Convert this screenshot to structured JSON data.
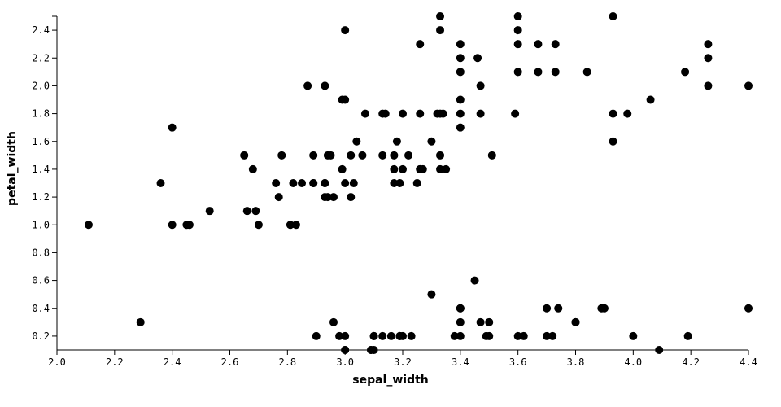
{
  "chart_data": {
    "type": "scatter",
    "title": "",
    "xlabel": "sepal_width",
    "ylabel": "petal_width",
    "xlim": [
      2.0,
      4.4
    ],
    "ylim": [
      0.1,
      2.5
    ],
    "xticks": [
      "2.0",
      "2.2",
      "2.4",
      "2.6",
      "2.8",
      "3.0",
      "3.2",
      "3.4",
      "3.6",
      "3.8",
      "4.0",
      "4.2",
      "4.4"
    ],
    "yticks": [
      "0.2",
      "0.4",
      "0.6",
      "0.8",
      "1.0",
      "1.2",
      "1.4",
      "1.6",
      "1.8",
      "2.0",
      "2.2",
      "2.4"
    ],
    "grid": false,
    "point_color": "#000000",
    "points": [
      [
        3.33,
        2.5
      ],
      [
        3.6,
        2.5
      ],
      [
        3.93,
        2.5
      ],
      [
        3.0,
        2.4
      ],
      [
        3.33,
        2.4
      ],
      [
        3.6,
        2.4
      ],
      [
        3.26,
        2.3
      ],
      [
        3.4,
        2.3
      ],
      [
        3.6,
        2.3
      ],
      [
        3.67,
        2.3
      ],
      [
        3.73,
        2.3
      ],
      [
        4.26,
        2.3
      ],
      [
        3.4,
        2.2
      ],
      [
        3.46,
        2.2
      ],
      [
        4.26,
        2.2
      ],
      [
        3.4,
        2.1
      ],
      [
        3.6,
        2.1
      ],
      [
        3.67,
        2.1
      ],
      [
        3.73,
        2.1
      ],
      [
        3.84,
        2.1
      ],
      [
        4.18,
        2.1
      ],
      [
        2.87,
        2.0
      ],
      [
        2.93,
        2.0
      ],
      [
        3.47,
        2.0
      ],
      [
        4.26,
        2.0
      ],
      [
        4.4,
        2.0
      ],
      [
        2.99,
        1.9
      ],
      [
        3.0,
        1.9
      ],
      [
        3.4,
        1.9
      ],
      [
        4.06,
        1.9
      ],
      [
        3.07,
        1.8
      ],
      [
        3.13,
        1.8
      ],
      [
        3.14,
        1.8
      ],
      [
        3.2,
        1.8
      ],
      [
        3.26,
        1.8
      ],
      [
        3.32,
        1.8
      ],
      [
        3.33,
        1.8
      ],
      [
        3.34,
        1.8
      ],
      [
        3.4,
        1.8
      ],
      [
        3.47,
        1.8
      ],
      [
        3.59,
        1.8
      ],
      [
        3.93,
        1.8
      ],
      [
        3.98,
        1.8
      ],
      [
        2.4,
        1.7
      ],
      [
        3.4,
        1.7
      ],
      [
        3.04,
        1.6
      ],
      [
        3.18,
        1.6
      ],
      [
        3.3,
        1.6
      ],
      [
        3.93,
        1.6
      ],
      [
        2.65,
        1.5
      ],
      [
        2.78,
        1.5
      ],
      [
        2.89,
        1.5
      ],
      [
        2.94,
        1.5
      ],
      [
        2.95,
        1.5
      ],
      [
        3.02,
        1.5
      ],
      [
        3.06,
        1.5
      ],
      [
        3.13,
        1.5
      ],
      [
        3.17,
        1.5
      ],
      [
        3.22,
        1.5
      ],
      [
        3.33,
        1.5
      ],
      [
        3.51,
        1.5
      ],
      [
        2.68,
        1.4
      ],
      [
        2.99,
        1.4
      ],
      [
        3.17,
        1.4
      ],
      [
        3.2,
        1.4
      ],
      [
        3.26,
        1.4
      ],
      [
        3.26,
        1.4
      ],
      [
        3.27,
        1.4
      ],
      [
        3.33,
        1.4
      ],
      [
        3.35,
        1.4
      ],
      [
        2.36,
        1.3
      ],
      [
        2.76,
        1.3
      ],
      [
        2.82,
        1.3
      ],
      [
        2.85,
        1.3
      ],
      [
        2.89,
        1.3
      ],
      [
        2.89,
        1.3
      ],
      [
        2.93,
        1.3
      ],
      [
        2.93,
        1.3
      ],
      [
        3.0,
        1.3
      ],
      [
        3.03,
        1.3
      ],
      [
        3.17,
        1.3
      ],
      [
        3.19,
        1.3
      ],
      [
        3.25,
        1.3
      ],
      [
        2.77,
        1.2
      ],
      [
        2.93,
        1.2
      ],
      [
        2.94,
        1.2
      ],
      [
        2.96,
        1.2
      ],
      [
        3.02,
        1.2
      ],
      [
        2.53,
        1.1
      ],
      [
        2.66,
        1.1
      ],
      [
        2.69,
        1.1
      ],
      [
        2.11,
        1.0
      ],
      [
        2.4,
        1.0
      ],
      [
        2.45,
        1.0
      ],
      [
        2.46,
        1.0
      ],
      [
        2.7,
        1.0
      ],
      [
        2.81,
        1.0
      ],
      [
        2.83,
        1.0
      ],
      [
        3.45,
        0.6
      ],
      [
        3.3,
        0.5
      ],
      [
        3.4,
        0.4
      ],
      [
        3.4,
        0.4
      ],
      [
        3.7,
        0.4
      ],
      [
        3.74,
        0.4
      ],
      [
        3.89,
        0.4
      ],
      [
        3.9,
        0.4
      ],
      [
        4.4,
        0.4
      ],
      [
        2.29,
        0.3
      ],
      [
        2.96,
        0.3
      ],
      [
        3.4,
        0.3
      ],
      [
        3.47,
        0.3
      ],
      [
        3.5,
        0.3
      ],
      [
        3.8,
        0.3
      ],
      [
        3.8,
        0.3
      ],
      [
        2.9,
        0.2
      ],
      [
        2.98,
        0.2
      ],
      [
        3.0,
        0.2
      ],
      [
        3.1,
        0.2
      ],
      [
        3.1,
        0.2
      ],
      [
        3.13,
        0.2
      ],
      [
        3.16,
        0.2
      ],
      [
        3.19,
        0.2
      ],
      [
        3.19,
        0.2
      ],
      [
        3.2,
        0.2
      ],
      [
        3.23,
        0.2
      ],
      [
        3.38,
        0.2
      ],
      [
        3.4,
        0.2
      ],
      [
        3.49,
        0.2
      ],
      [
        3.5,
        0.2
      ],
      [
        3.6,
        0.2
      ],
      [
        3.62,
        0.2
      ],
      [
        3.7,
        0.2
      ],
      [
        3.72,
        0.2
      ],
      [
        4.0,
        0.2
      ],
      [
        4.19,
        0.2
      ],
      [
        3.0,
        0.1
      ],
      [
        3.0,
        0.1
      ],
      [
        3.09,
        0.1
      ],
      [
        3.09,
        0.1
      ],
      [
        3.1,
        0.1
      ],
      [
        4.09,
        0.1
      ]
    ]
  }
}
